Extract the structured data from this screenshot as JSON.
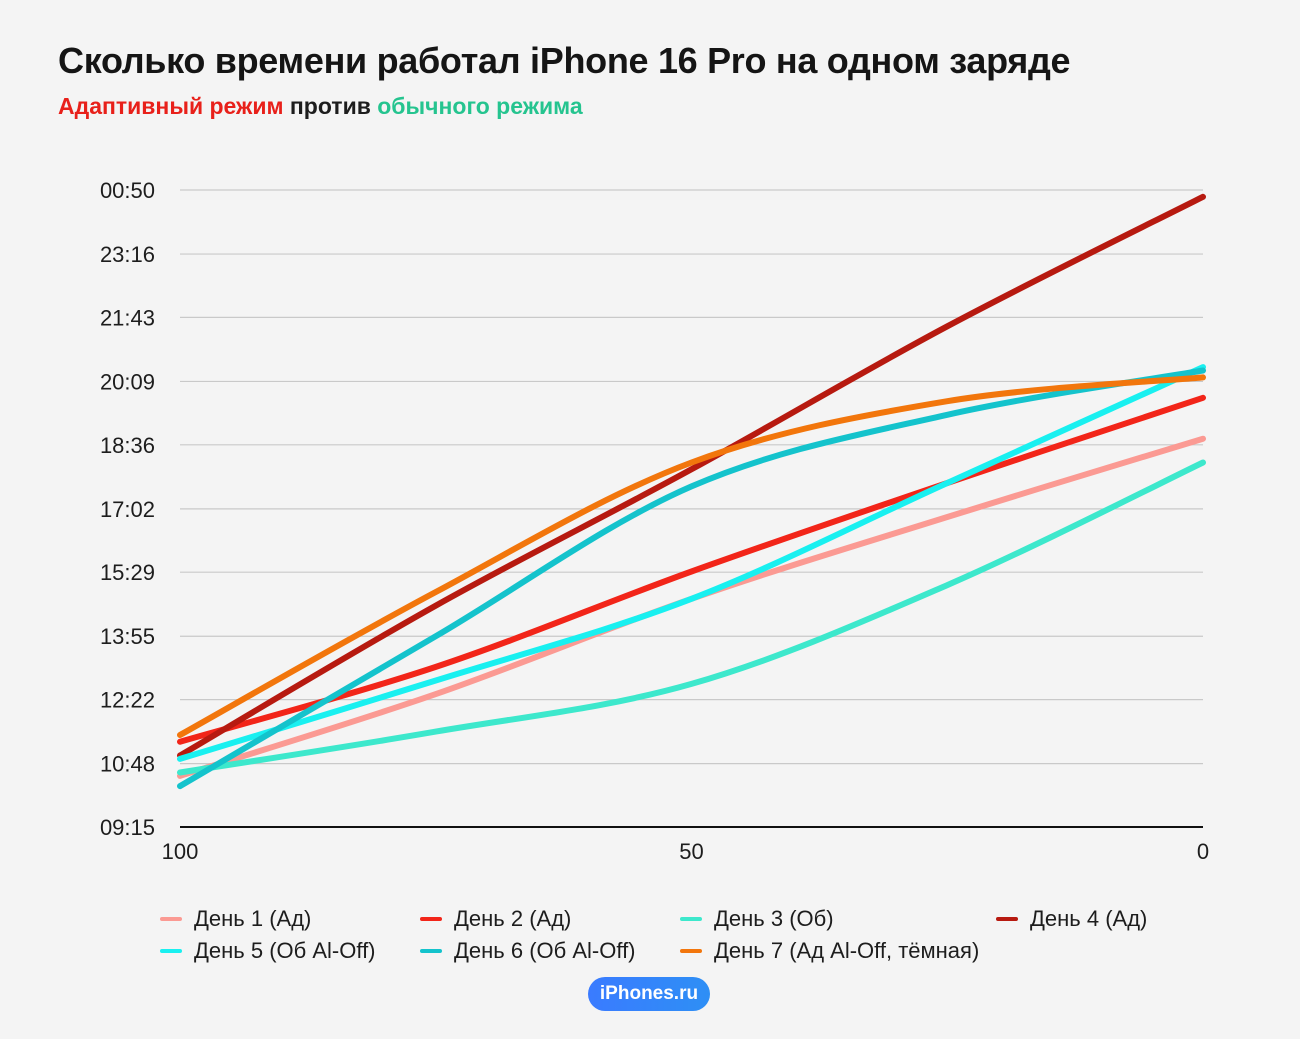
{
  "title": "Сколько времени работал iPhone 16 Pro на одном заряде",
  "subtitle": {
    "adaptive": "Адаптивный режим",
    "vs": " против ",
    "normal": "обычного режима"
  },
  "colors": {
    "adaptive": "#e8201a",
    "normal": "#25c48f"
  },
  "badge": "iPhones.ru",
  "chart_data": {
    "type": "line",
    "x_ticks": [
      "100",
      "50",
      "0"
    ],
    "x_tick_values": [
      100,
      50,
      0
    ],
    "xlim": [
      100,
      0
    ],
    "y_ticks": [
      "09:15",
      "10:48",
      "12:22",
      "13:55",
      "15:29",
      "17:02",
      "18:36",
      "20:09",
      "21:43",
      "23:16",
      "00:50"
    ],
    "grid": true,
    "legend_position": "bottom",
    "series": [
      {
        "name": "День  1 (Ад)",
        "color": "#fb9a93",
        "points": [
          [
            100,
            "10:30"
          ],
          [
            75,
            "12:30"
          ],
          [
            50,
            "14:50"
          ],
          [
            25,
            "16:50"
          ],
          [
            0,
            "18:45"
          ]
        ]
      },
      {
        "name": "День  2 (Ад)",
        "color": "#f22519",
        "points": [
          [
            100,
            "11:20"
          ],
          [
            75,
            "13:10"
          ],
          [
            50,
            "15:30"
          ],
          [
            25,
            "17:40"
          ],
          [
            0,
            "19:45"
          ]
        ]
      },
      {
        "name": "День  3 (Об)",
        "color": "#3de8cc",
        "points": [
          [
            100,
            "10:35"
          ],
          [
            75,
            "11:35"
          ],
          [
            50,
            "12:45"
          ],
          [
            25,
            "15:10"
          ],
          [
            0,
            "18:10"
          ]
        ]
      },
      {
        "name": "День  4 (Ад)",
        "color": "#b71a10",
        "points": [
          [
            100,
            "11:00"
          ],
          [
            75,
            "14:40"
          ],
          [
            50,
            "18:00"
          ],
          [
            25,
            "21:30"
          ],
          [
            0,
            "00:40"
          ]
        ]
      },
      {
        "name": "День  5 (Об Al-Off)",
        "color": "#19f0f0",
        "points": [
          [
            100,
            "10:55"
          ],
          [
            75,
            "12:50"
          ],
          [
            50,
            "14:50"
          ],
          [
            25,
            "17:40"
          ],
          [
            0,
            "20:30"
          ]
        ]
      },
      {
        "name": "День  6 (Об Al-Off)",
        "color": "#14c3cc",
        "points": [
          [
            100,
            "10:15"
          ],
          [
            75,
            "13:55"
          ],
          [
            50,
            "17:35"
          ],
          [
            25,
            "19:20"
          ],
          [
            0,
            "20:25"
          ]
        ]
      },
      {
        "name": "День  7 (Ад Al-Off, тёмная)",
        "color": "#f2760c",
        "points": [
          [
            100,
            "11:30"
          ],
          [
            75,
            "15:00"
          ],
          [
            50,
            "18:10"
          ],
          [
            25,
            "19:40"
          ],
          [
            0,
            "20:15"
          ]
        ]
      }
    ]
  }
}
